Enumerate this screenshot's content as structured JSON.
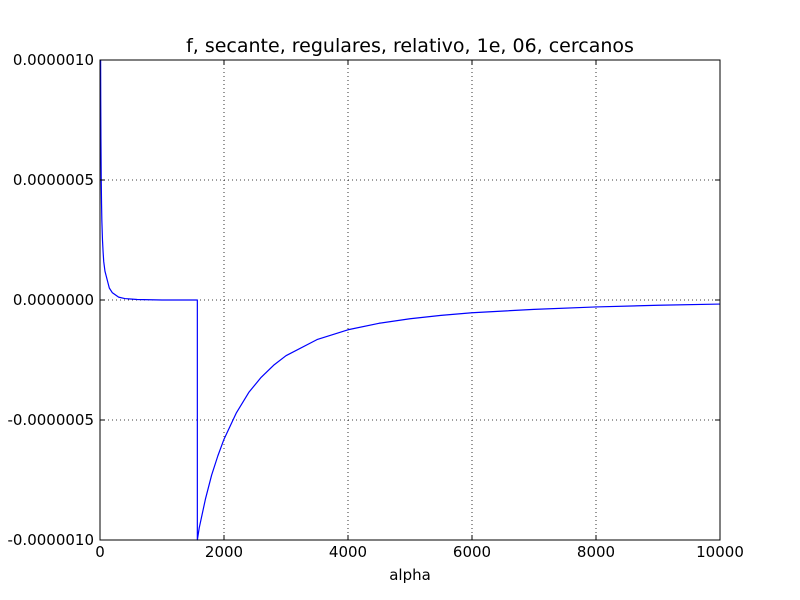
{
  "chart_data": {
    "type": "line",
    "title": "f, secante, regulares, relativo, 1e, 06, cercanos",
    "xlabel": "alpha",
    "ylabel": "",
    "xlim": [
      0,
      10000
    ],
    "ylim": [
      -1e-06,
      1e-06
    ],
    "x_ticks": [
      0,
      2000,
      4000,
      6000,
      8000,
      10000
    ],
    "x_tick_labels": [
      "0",
      "2000",
      "4000",
      "6000",
      "8000",
      "10000"
    ],
    "y_ticks": [
      1e-06,
      5e-07,
      0.0,
      -5e-07,
      -1e-06
    ],
    "y_tick_labels": [
      "0.0000010",
      "0.0000005",
      "0.0000000",
      "-0.0000005",
      "-0.0000010"
    ],
    "grid": true,
    "grid_style": "dotted",
    "line_color": "#0000ff",
    "series": [
      {
        "x": [
          10,
          12,
          15,
          20,
          25,
          30,
          40,
          50,
          60,
          80,
          100,
          150,
          200,
          300,
          400,
          600,
          800,
          1000,
          1200,
          1400,
          1570,
          1570,
          1600,
          1700,
          1800,
          1900,
          2000,
          2200,
          2400,
          2600,
          2800,
          3000,
          3500,
          4000,
          4500,
          5000,
          5500,
          6000,
          7000,
          8000,
          9000,
          10000
        ],
        "y": [
          1e-06,
          8.3e-07,
          6.7e-07,
          5e-07,
          4e-07,
          3.3e-07,
          2.5e-07,
          2e-07,
          1.6e-07,
          1.2e-07,
          1e-07,
          5e-08,
          3e-08,
          1.2e-08,
          6e-09,
          2e-09,
          1e-09,
          0.0,
          0.0,
          0.0,
          0.0,
          -1e-06,
          -9.5e-07,
          -8.3e-07,
          -7.3e-07,
          -6.5e-07,
          -5.8e-07,
          -4.7e-07,
          -3.85e-07,
          -3.22e-07,
          -2.72e-07,
          -2.32e-07,
          -1.65e-07,
          -1.24e-07,
          -9.7e-08,
          -7.8e-08,
          -6.4e-08,
          -5.3e-08,
          -3.9e-08,
          -2.9e-08,
          -2.2e-08,
          -1.7e-08
        ]
      }
    ]
  }
}
